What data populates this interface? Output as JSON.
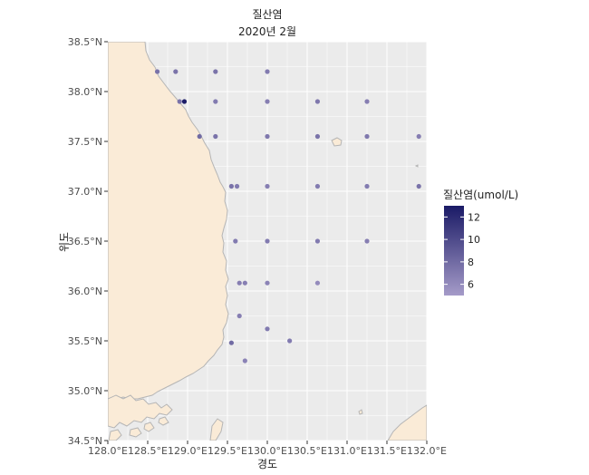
{
  "title": "질산염",
  "subtitle": "2020년 2월",
  "xlabel": "경도",
  "ylabel": "위도",
  "legend_title": "질산염(umol/L)",
  "colors": {
    "panel_bg": "#EBEBEB",
    "grid": "#FFFFFF",
    "land": "#FAEBD7",
    "coast": "#B5B5B5",
    "low": "#A59BC8",
    "high": "#1A1A66"
  },
  "chart_data": {
    "type": "scatter",
    "x_ticks": [
      "128.0°E",
      "128.5°E",
      "129.0°E",
      "129.5°E",
      "130.0°E",
      "130.5°E",
      "131.0°E",
      "131.5°E",
      "132.0°E"
    ],
    "y_ticks": [
      "34.5°N",
      "35.0°N",
      "35.5°N",
      "36.0°N",
      "36.5°N",
      "37.0°N",
      "37.5°N",
      "38.0°N",
      "38.5°N"
    ],
    "x_tick_values": [
      128.0,
      128.5,
      129.0,
      129.5,
      130.0,
      130.5,
      131.0,
      131.5,
      132.0
    ],
    "y_tick_values": [
      34.5,
      35.0,
      35.5,
      36.0,
      36.5,
      37.0,
      37.5,
      38.0,
      38.5
    ],
    "xlim": [
      128.0,
      132.0
    ],
    "ylim": [
      34.5,
      38.5
    ],
    "legend": {
      "ticks": [
        "12",
        "10",
        "8",
        "6"
      ],
      "tick_values": [
        12,
        10,
        8,
        6
      ],
      "range": [
        5.0,
        13.0
      ],
      "position": "right"
    },
    "points": [
      {
        "lon": 128.62,
        "lat": 38.2,
        "value": 7.5
      },
      {
        "lon": 128.85,
        "lat": 38.2,
        "value": 7.5
      },
      {
        "lon": 129.35,
        "lat": 38.2,
        "value": 7.5
      },
      {
        "lon": 130.0,
        "lat": 38.2,
        "value": 7.0
      },
      {
        "lon": 128.9,
        "lat": 37.9,
        "value": 7.5
      },
      {
        "lon": 128.96,
        "lat": 37.9,
        "value": 12.8
      },
      {
        "lon": 129.35,
        "lat": 37.9,
        "value": 7.0
      },
      {
        "lon": 130.0,
        "lat": 37.9,
        "value": 6.8
      },
      {
        "lon": 130.63,
        "lat": 37.9,
        "value": 7.2
      },
      {
        "lon": 131.25,
        "lat": 37.9,
        "value": 6.8
      },
      {
        "lon": 129.15,
        "lat": 37.55,
        "value": 8.0
      },
      {
        "lon": 129.35,
        "lat": 37.55,
        "value": 7.5
      },
      {
        "lon": 130.0,
        "lat": 37.55,
        "value": 7.2
      },
      {
        "lon": 130.63,
        "lat": 37.55,
        "value": 7.5
      },
      {
        "lon": 131.25,
        "lat": 37.55,
        "value": 7.2
      },
      {
        "lon": 131.9,
        "lat": 37.55,
        "value": 6.8
      },
      {
        "lon": 129.55,
        "lat": 37.05,
        "value": 7.5
      },
      {
        "lon": 129.62,
        "lat": 37.05,
        "value": 7.0
      },
      {
        "lon": 130.0,
        "lat": 37.05,
        "value": 6.8
      },
      {
        "lon": 130.63,
        "lat": 37.05,
        "value": 7.0
      },
      {
        "lon": 131.25,
        "lat": 37.05,
        "value": 7.0
      },
      {
        "lon": 131.9,
        "lat": 37.05,
        "value": 7.5
      },
      {
        "lon": 129.6,
        "lat": 36.5,
        "value": 7.0
      },
      {
        "lon": 130.0,
        "lat": 36.5,
        "value": 7.0
      },
      {
        "lon": 130.63,
        "lat": 36.5,
        "value": 7.0
      },
      {
        "lon": 131.25,
        "lat": 36.5,
        "value": 6.8
      },
      {
        "lon": 129.65,
        "lat": 36.08,
        "value": 6.8
      },
      {
        "lon": 129.72,
        "lat": 36.08,
        "value": 6.8
      },
      {
        "lon": 130.0,
        "lat": 36.08,
        "value": 6.5
      },
      {
        "lon": 130.63,
        "lat": 36.08,
        "value": 6.0
      },
      {
        "lon": 129.65,
        "lat": 35.75,
        "value": 6.8
      },
      {
        "lon": 130.0,
        "lat": 35.62,
        "value": 7.0
      },
      {
        "lon": 129.55,
        "lat": 35.48,
        "value": 8.0
      },
      {
        "lon": 130.28,
        "lat": 35.5,
        "value": 7.0
      },
      {
        "lon": 129.72,
        "lat": 35.3,
        "value": 6.5
      }
    ]
  }
}
